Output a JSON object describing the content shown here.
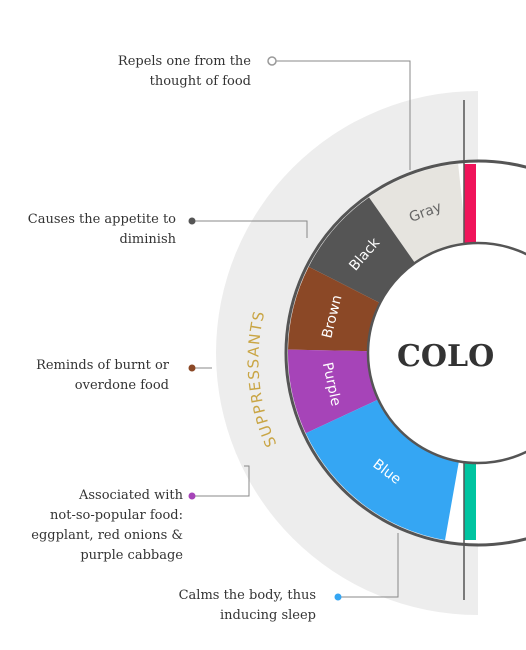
{
  "title_fragment": "COLO",
  "group_label": "SUPPRESSANTS",
  "segments": [
    {
      "label": "Gray",
      "color": "#e6e4df",
      "text_color": "#666666"
    },
    {
      "label": "Black",
      "color": "#555555",
      "text_color": "#ffffff"
    },
    {
      "label": "Brown",
      "color": "#8b4826",
      "text_color": "#ffffff"
    },
    {
      "label": "Purple",
      "color": "#a644b8",
      "text_color": "#ffffff"
    },
    {
      "label": "Blue",
      "color": "#35a6f3",
      "text_color": "#ffffff"
    }
  ],
  "callouts": [
    {
      "text": "Repels one from the\nthought of food",
      "dot_color": "#999999"
    },
    {
      "text": "Causes the appetite to\ndiminish",
      "dot_color": "#555555"
    },
    {
      "text": "Reminds of burnt or\noverdone food",
      "dot_color": "#8b4826"
    },
    {
      "text": "Associated with\nnot-so-popular food:\neggplant, red onions &\npurple cabbage",
      "dot_color": "#a644b8"
    },
    {
      "text": "Calms the body, thus\ninducing sleep",
      "dot_color": "#35a6f3"
    }
  ],
  "colors": {
    "outer_band": "#ededed",
    "ring_outline": "#555555",
    "group_label": "#c9a544",
    "right_top_accent": "#f0145a",
    "right_bottom_accent": "#00c4a0",
    "center_text": "#333333",
    "leader_line": "#888888"
  }
}
